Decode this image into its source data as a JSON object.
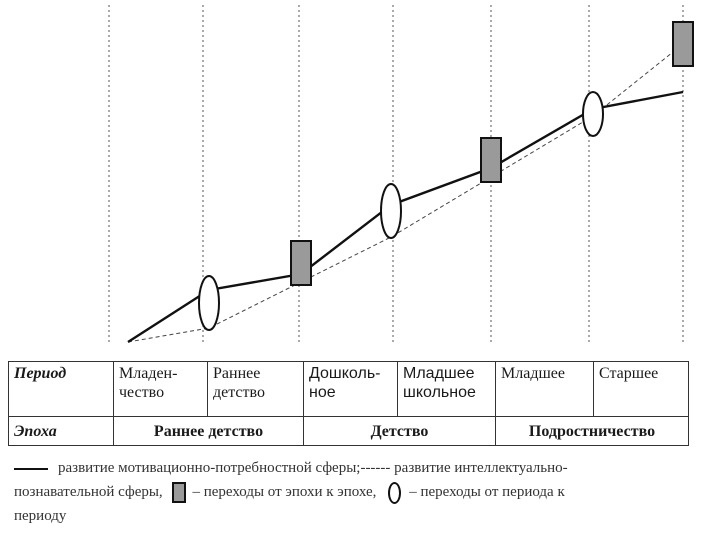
{
  "table": {
    "period_header": "Период",
    "epoch_header": "Эпоха",
    "periods": [
      {
        "line1": "Младен-",
        "line2": "чество"
      },
      {
        "line1": "Раннее",
        "line2": "детство"
      },
      {
        "line1": "Дошколь-",
        "line2": "ное"
      },
      {
        "line1": "Младшее",
        "line2": "школьное"
      },
      {
        "line1": "Младшее",
        "line2": ""
      },
      {
        "line1": "Старшее",
        "line2": ""
      }
    ],
    "epochs": [
      "Раннее детство",
      "Детство",
      "Подростничество"
    ]
  },
  "legend": {
    "line1_a": "развитие мотивационно-потребностной сферы;------ развитие интеллектуально-",
    "line2_a": "познавательной сферы,",
    "line2_b": "– переходы от эпохи к эпохе,",
    "line2_c": "– переходы от периода к",
    "line3": "периоду"
  },
  "colors": {
    "line": "#111111",
    "transition_fill": "#9a9a9a",
    "grid": "#555555"
  }
}
